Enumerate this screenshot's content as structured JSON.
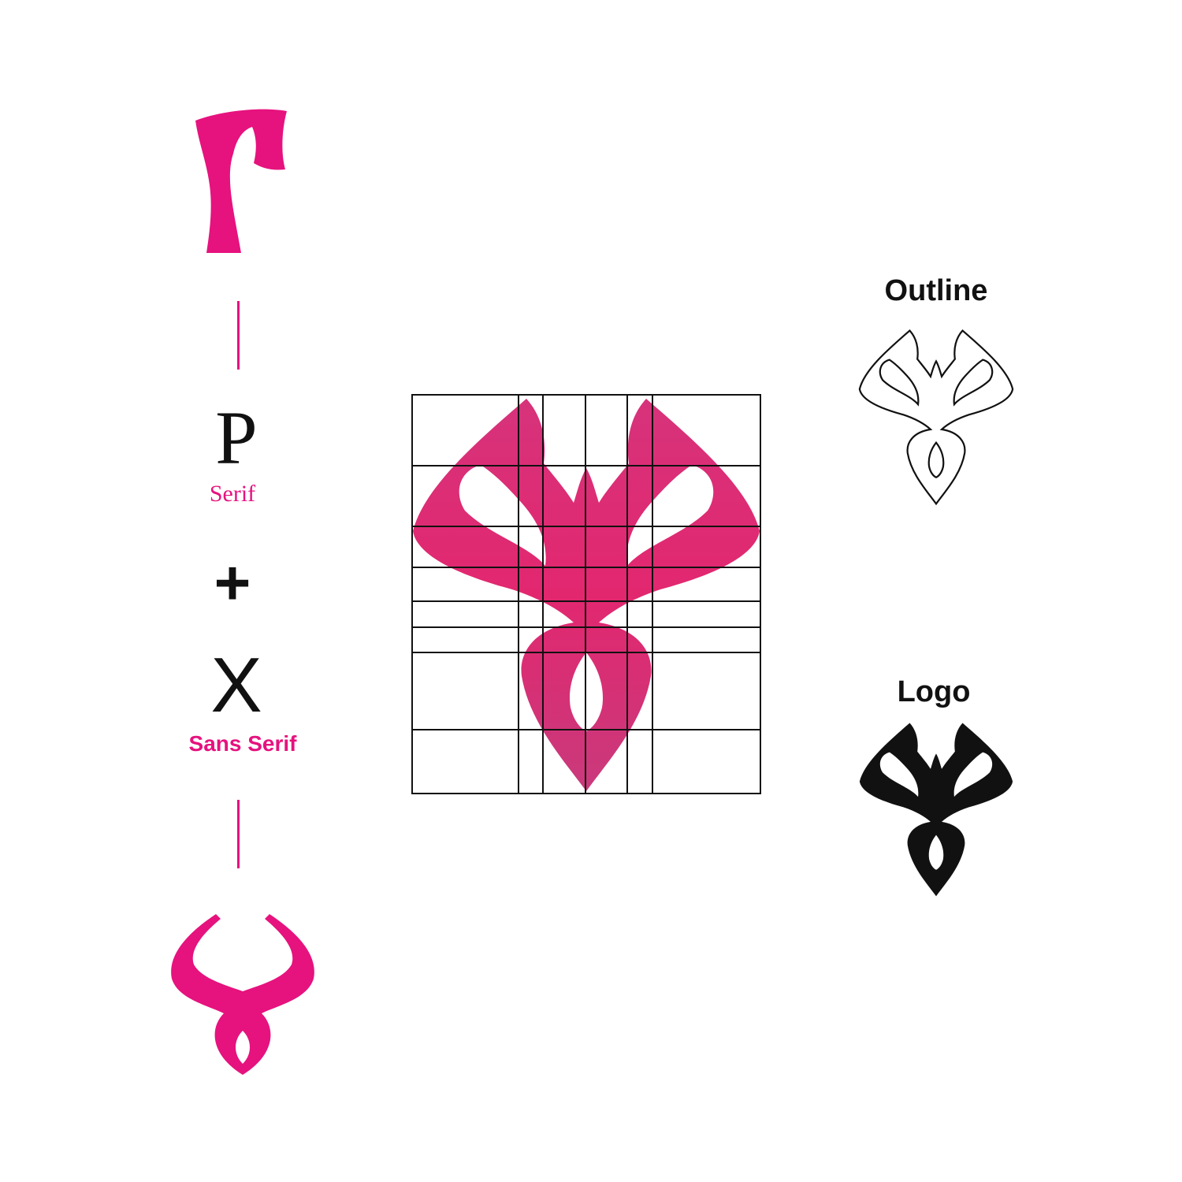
{
  "colors": {
    "accent": "#e6127e",
    "grid_fill": "#d92a6e",
    "ink": "#111111",
    "background": "#ffffff"
  },
  "left_column": {
    "serif_letter": "P",
    "serif_label": "Serif",
    "operator": "+",
    "sans_letter": "X",
    "sans_label": "Sans Serif"
  },
  "right_column": {
    "outline_heading": "Outline",
    "logo_heading": "Logo"
  },
  "icons": {
    "top_mark": "stylized-p-mark",
    "bottom_mark": "stylized-x-mark",
    "grid_mark": "logo-on-construction-grid",
    "outline_mark": "logo-outline",
    "solid_mark": "logo-solid"
  }
}
